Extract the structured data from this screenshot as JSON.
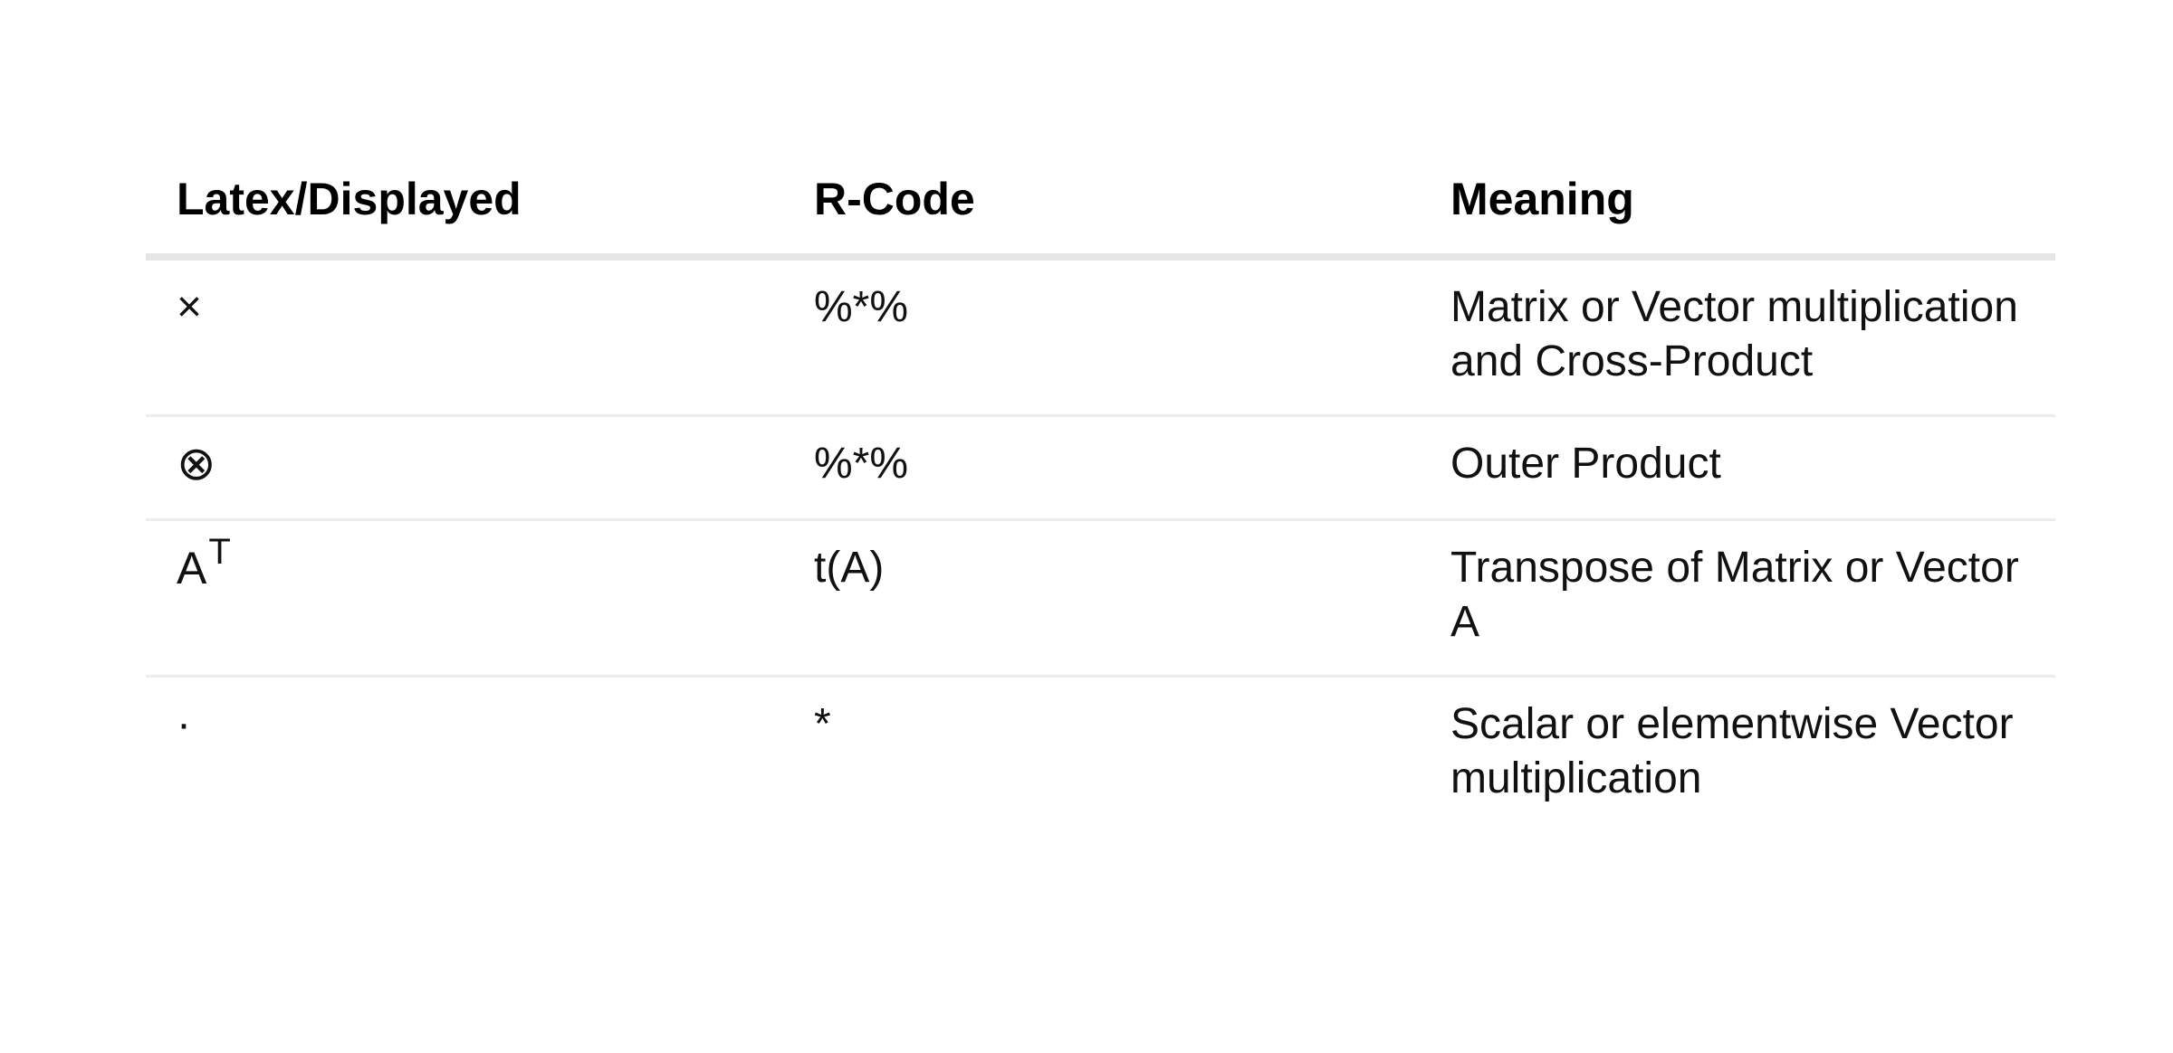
{
  "table": {
    "headers": [
      "Latex/Displayed",
      "R-Code",
      "Meaning"
    ],
    "rows": [
      {
        "symbol": "×",
        "code": "%*%",
        "meaning": "Matrix or Vector multiplication and Cross-Product"
      },
      {
        "symbol": "⊗",
        "code": "%*%",
        "meaning": "Outer Product"
      },
      {
        "symbol_base": "A",
        "symbol_sup": "T",
        "code": "t(A)",
        "meaning": "Transpose of Matrix or Vector A"
      },
      {
        "symbol": "·",
        "code": "*",
        "meaning": "Scalar or elementwise Vector multiplication"
      }
    ]
  }
}
